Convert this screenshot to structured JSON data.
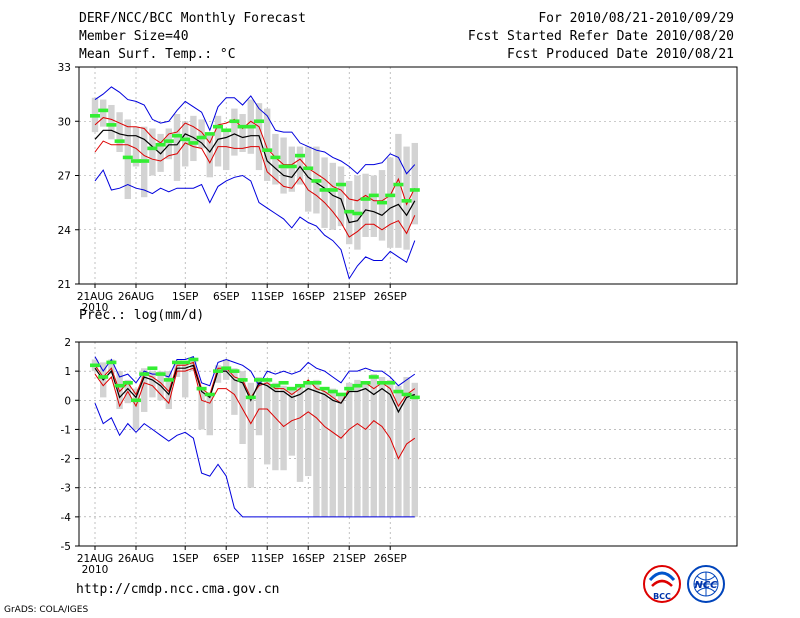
{
  "header": {
    "line1_left": "DERF/NCC/BCC Monthly Forecast",
    "line2_left": "Member Size=40",
    "line3_left": "Mean Surf. Temp.: °C",
    "line1_right": "For 2010/08/21-2010/09/29",
    "line2_right": "Fcst Started Refer Date 2010/08/20",
    "line3_right": "Fcst Produced Date 2010/08/21"
  },
  "precip_label": "Prec.: log(mm/d)",
  "footer": {
    "url": "http://cmdp.ncc.cma.gov.cn",
    "credit": "GrADS: COLA/IGES"
  },
  "logos": {
    "bcc": "BCC",
    "ncc": "NCC"
  },
  "colors": {
    "blue": "#0000dd",
    "red": "#dd0000",
    "black": "#000000",
    "green": "#33ee33",
    "box": "#d3d3d3"
  },
  "chart_data": [
    {
      "type": "line",
      "title": "Mean Surf. Temp.: °C",
      "x_day_index_start": 0,
      "x_tick_labels": [
        "21AUG",
        "26AUG",
        "1SEP",
        "6SEP",
        "11SEP",
        "16SEP",
        "21SEP",
        "26SEP"
      ],
      "x_tick_days": [
        0,
        5,
        11,
        16,
        21,
        26,
        31,
        36
      ],
      "year_label": "2010",
      "ylim": [
        21,
        33
      ],
      "y_ticks": [
        21,
        24,
        27,
        30,
        33
      ],
      "series": [
        {
          "name": "max",
          "color": "blue",
          "values": [
            31.2,
            31.5,
            31.9,
            31.6,
            31.2,
            31.1,
            30.9,
            30.1,
            29.9,
            30.0,
            30.6,
            31.1,
            30.8,
            30.5,
            29.5,
            30.8,
            31.3,
            31.3,
            30.9,
            31.4,
            30.7,
            30.3,
            29.5,
            29.4,
            29.4,
            28.8,
            28.6,
            28.4,
            28.3,
            28.0,
            27.8,
            27.5,
            27.1,
            27.6,
            27.6,
            27.7,
            28.2,
            28.0,
            27.1,
            27.6
          ]
        },
        {
          "name": "upper",
          "color": "red",
          "values": [
            29.8,
            30.2,
            30.1,
            29.9,
            29.7,
            29.7,
            29.6,
            29.1,
            28.8,
            29.3,
            29.4,
            29.9,
            29.7,
            29.4,
            28.8,
            29.8,
            29.9,
            30.1,
            29.6,
            30.0,
            29.7,
            28.5,
            28.0,
            27.6,
            27.6,
            27.9,
            27.4,
            27.1,
            26.8,
            26.4,
            26.2,
            25.7,
            25.6,
            25.9,
            25.6,
            25.6,
            25.9,
            26.8,
            25.4,
            26.3
          ]
        },
        {
          "name": "mean",
          "color": "black",
          "values": [
            29.0,
            29.5,
            29.5,
            29.3,
            29.2,
            29.2,
            29.0,
            28.6,
            28.2,
            28.7,
            28.7,
            29.3,
            29.1,
            28.8,
            28.3,
            29.0,
            29.1,
            29.3,
            29.1,
            29.2,
            29.2,
            27.8,
            27.4,
            27.0,
            26.9,
            27.5,
            26.9,
            26.6,
            26.3,
            25.9,
            25.7,
            24.4,
            24.5,
            25.1,
            25.0,
            24.8,
            25.2,
            25.4,
            24.8,
            25.6
          ]
        },
        {
          "name": "lower",
          "color": "red",
          "values": [
            28.3,
            28.9,
            28.7,
            28.7,
            28.7,
            28.5,
            28.1,
            27.9,
            27.8,
            28.1,
            28.2,
            28.8,
            28.6,
            28.5,
            27.7,
            28.6,
            28.6,
            28.5,
            28.5,
            28.6,
            28.6,
            27.2,
            26.8,
            26.4,
            26.3,
            26.9,
            26.2,
            25.9,
            25.5,
            25.0,
            24.4,
            23.6,
            23.9,
            24.3,
            24.3,
            24.0,
            24.3,
            24.5,
            23.8,
            24.8
          ]
        },
        {
          "name": "min",
          "color": "blue",
          "values": [
            26.7,
            27.3,
            26.2,
            26.3,
            26.5,
            26.3,
            26.2,
            26.0,
            26.3,
            26.1,
            26.3,
            26.3,
            26.3,
            26.5,
            25.5,
            26.4,
            26.7,
            26.9,
            27.0,
            26.7,
            25.5,
            25.2,
            24.9,
            24.6,
            24.1,
            24.7,
            24.4,
            24.2,
            23.7,
            23.4,
            22.9,
            21.3,
            22.0,
            22.5,
            22.3,
            22.3,
            22.8,
            22.5,
            22.2,
            23.4
          ]
        }
      ],
      "member_range_boxes": [
        [
          29.4,
          31.3
        ],
        [
          29.7,
          31.2
        ],
        [
          29.0,
          30.9
        ],
        [
          28.3,
          30.5
        ],
        [
          25.7,
          30.1
        ],
        [
          27.5,
          29.7
        ],
        [
          25.8,
          29.7
        ],
        [
          27.0,
          29.6
        ],
        [
          27.2,
          29.3
        ],
        [
          27.9,
          29.6
        ],
        [
          26.7,
          30.4
        ],
        [
          27.5,
          30.0
        ],
        [
          27.8,
          30.3
        ],
        [
          28.5,
          30.1
        ],
        [
          26.9,
          29.2
        ],
        [
          27.5,
          30.3
        ],
        [
          27.3,
          29.5
        ],
        [
          28.1,
          30.7
        ],
        [
          28.3,
          30.4
        ],
        [
          28.2,
          31.2
        ],
        [
          27.3,
          31.0
        ],
        [
          26.7,
          30.7
        ],
        [
          26.5,
          29.3
        ],
        [
          26.0,
          29.1
        ],
        [
          26.1,
          28.6
        ],
        [
          26.5,
          28.6
        ],
        [
          25.0,
          28.6
        ],
        [
          24.9,
          28.6
        ],
        [
          24.1,
          28.0
        ],
        [
          24.0,
          27.7
        ],
        [
          24.2,
          27.5
        ],
        [
          23.2,
          26.7
        ],
        [
          22.9,
          27.0
        ],
        [
          23.6,
          27.1
        ],
        [
          23.6,
          27.0
        ],
        [
          23.4,
          27.3
        ],
        [
          23.0,
          28.0
        ],
        [
          23.0,
          29.3
        ],
        [
          22.9,
          28.6
        ],
        [
          24.3,
          28.8
        ]
      ],
      "observed_markers": [
        30.3,
        30.6,
        29.8,
        28.9,
        28.0,
        27.8,
        27.8,
        28.5,
        28.7,
        28.9,
        29.2,
        29.0,
        28.8,
        29.1,
        29.3,
        29.7,
        29.5,
        30.0,
        29.7,
        29.7,
        30.0,
        28.4,
        28.0,
        27.5,
        27.5,
        28.1,
        27.4,
        26.7,
        26.2,
        26.2,
        26.5,
        25.0,
        24.9,
        25.7,
        25.9,
        25.5,
        25.9,
        26.5,
        25.6,
        26.2
      ]
    },
    {
      "type": "line",
      "title": "Prec.: log(mm/d)",
      "x_tick_labels": [
        "21AUG",
        "26AUG",
        "1SEP",
        "6SEP",
        "11SEP",
        "16SEP",
        "21SEP",
        "26SEP"
      ],
      "x_tick_days": [
        0,
        5,
        11,
        16,
        21,
        26,
        31,
        36
      ],
      "year_label": "2010",
      "ylim": [
        -5,
        2
      ],
      "y_ticks": [
        -5,
        -4,
        -3,
        -2,
        -1,
        0,
        1,
        2
      ],
      "series": [
        {
          "name": "max",
          "color": "blue",
          "values": [
            1.5,
            1.0,
            1.4,
            0.8,
            0.9,
            0.6,
            1.0,
            0.9,
            0.9,
            0.8,
            1.4,
            1.4,
            1.5,
            0.6,
            0.5,
            1.3,
            1.4,
            1.3,
            1.2,
            1.0,
            0.5,
            1.0,
            0.9,
            1.0,
            0.9,
            1.0,
            1.3,
            1.1,
            1.0,
            0.8,
            0.6,
            1.0,
            1.0,
            1.1,
            1.0,
            1.0,
            0.8,
            0.5,
            0.7,
            0.9
          ]
        },
        {
          "name": "upper",
          "color": "red",
          "values": [
            1.2,
            0.8,
            1.1,
            0.3,
            0.6,
            0.2,
            0.9,
            0.8,
            0.6,
            0.3,
            1.2,
            1.2,
            1.3,
            0.4,
            0.2,
            1.1,
            1.1,
            0.8,
            0.7,
            0.1,
            0.5,
            0.6,
            0.4,
            0.4,
            0.2,
            0.4,
            0.7,
            0.4,
            0.3,
            0.1,
            -0.1,
            0.4,
            0.5,
            0.6,
            0.4,
            0.6,
            0.4,
            -0.2,
            0.2,
            0.4
          ]
        },
        {
          "name": "mean",
          "color": "black",
          "values": [
            1.1,
            0.7,
            1.0,
            0.1,
            0.4,
            0.1,
            0.8,
            0.7,
            0.5,
            0.2,
            1.1,
            1.1,
            1.2,
            0.3,
            0.1,
            1.0,
            1.0,
            0.7,
            0.6,
            0.0,
            0.6,
            0.5,
            0.3,
            0.3,
            0.1,
            0.2,
            0.4,
            0.3,
            0.2,
            0.0,
            -0.1,
            0.3,
            0.3,
            0.4,
            0.2,
            0.4,
            0.2,
            -0.4,
            0.1,
            0.2
          ]
        },
        {
          "name": "lower",
          "color": "red",
          "values": [
            0.9,
            0.5,
            0.8,
            -0.2,
            0.3,
            -0.2,
            0.6,
            0.5,
            0.2,
            -0.1,
            1.0,
            1.0,
            1.1,
            0.0,
            -0.1,
            0.4,
            0.4,
            0.2,
            -0.3,
            -0.8,
            -0.3,
            -0.3,
            -0.6,
            -0.9,
            -0.7,
            -0.6,
            -0.4,
            -0.6,
            -0.9,
            -1.1,
            -1.3,
            -1.0,
            -0.8,
            -1.0,
            -0.7,
            -0.9,
            -1.3,
            -2.0,
            -1.5,
            -1.3
          ]
        },
        {
          "name": "min",
          "color": "blue",
          "values": [
            -0.1,
            -0.8,
            -0.6,
            -1.2,
            -0.8,
            -1.1,
            -0.8,
            -1.0,
            -1.2,
            -1.4,
            -1.2,
            -1.1,
            -1.3,
            -2.5,
            -2.6,
            -2.2,
            -2.6,
            -3.7,
            -4.0,
            -4.0,
            -4.0,
            -4.0,
            -4.0,
            -4.0,
            -4.0,
            -4.0,
            -4.0,
            -4.0,
            -4.0,
            -4.0,
            -4.0,
            -4.0,
            -4.0,
            -4.0,
            -4.0,
            -4.0,
            -4.0,
            -4.0,
            -4.0,
            -4.0
          ]
        }
      ],
      "member_range_boxes": [
        [
          1.0,
          1.4
        ],
        [
          0.1,
          1.3
        ],
        [
          0.9,
          1.4
        ],
        [
          -0.3,
          1.0
        ],
        [
          -0.1,
          0.7
        ],
        [
          -1.0,
          0.4
        ],
        [
          -0.4,
          1.1
        ],
        [
          0.1,
          1.0
        ],
        [
          0.0,
          1.0
        ],
        [
          -0.3,
          1.0
        ],
        [
          0.8,
          1.3
        ],
        [
          0.1,
          1.3
        ],
        [
          1.0,
          1.4
        ],
        [
          -1.0,
          0.4
        ],
        [
          -1.2,
          0.2
        ],
        [
          0.6,
          1.2
        ],
        [
          0.7,
          1.4
        ],
        [
          -0.5,
          1.1
        ],
        [
          -1.5,
          1.0
        ],
        [
          -3.0,
          0.6
        ],
        [
          -1.2,
          0.8
        ],
        [
          -2.2,
          0.7
        ],
        [
          -2.4,
          0.6
        ],
        [
          -2.4,
          0.5
        ],
        [
          -1.9,
          0.4
        ],
        [
          -2.8,
          0.5
        ],
        [
          -2.6,
          0.6
        ],
        [
          -4.0,
          0.7
        ],
        [
          -4.0,
          0.3
        ],
        [
          -4.0,
          0.4
        ],
        [
          -4.0,
          0.2
        ],
        [
          -4.0,
          0.6
        ],
        [
          -4.0,
          0.7
        ],
        [
          -4.0,
          0.6
        ],
        [
          -4.0,
          0.9
        ],
        [
          -4.0,
          0.8
        ],
        [
          -4.0,
          0.7
        ],
        [
          -4.0,
          0.5
        ],
        [
          -4.0,
          0.8
        ],
        [
          -4.0,
          0.6
        ]
      ],
      "observed_markers": [
        1.2,
        0.8,
        1.3,
        0.5,
        0.6,
        0.0,
        0.9,
        1.1,
        0.9,
        0.7,
        1.3,
        1.3,
        1.4,
        0.4,
        0.2,
        1.0,
        1.1,
        1.0,
        0.7,
        0.1,
        0.7,
        0.7,
        0.5,
        0.6,
        0.4,
        0.5,
        0.6,
        0.6,
        0.4,
        0.3,
        0.2,
        0.4,
        0.5,
        0.6,
        0.8,
        0.6,
        0.6,
        0.3,
        0.2,
        0.1
      ]
    }
  ]
}
